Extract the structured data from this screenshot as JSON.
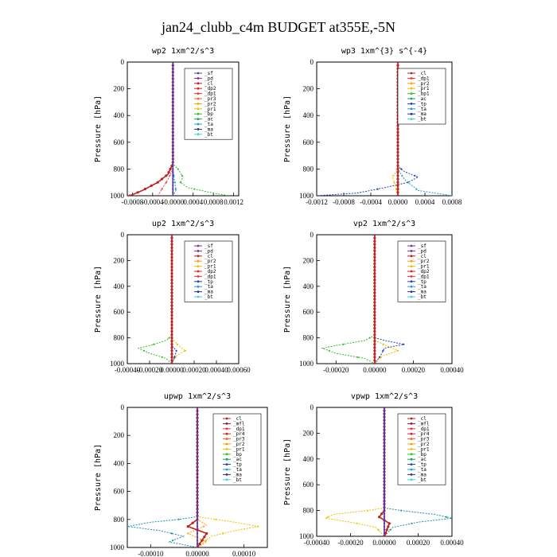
{
  "figure_title": "jan24_clubb_c4m  BUDGET at355E,-5N",
  "chart_data": [
    {
      "type": "line",
      "title": "wp2  1xm^2/s^3",
      "ylabel": "Pressure [hPa]",
      "ylim": [
        1000,
        0
      ],
      "yticks": [
        0,
        200,
        400,
        600,
        800,
        1000
      ],
      "xlim": [
        -0.0009,
        0.0013
      ],
      "xticks": [
        -0.0008,
        -0.0004,
        0.0,
        0.0004,
        0.0008,
        0.0012
      ],
      "xticklabels": [
        "-0.0008",
        "-0.0004",
        "-0.0000",
        "0.0004",
        "0.0008",
        "0.0012"
      ],
      "legend": [
        "_sf",
        "_pd",
        "_cl",
        "_dp2",
        "_dp1",
        "_pr3",
        "_pr2",
        "_pr1",
        "_bp",
        "_ac",
        "_ta",
        "_ma",
        "_bt"
      ],
      "series": [
        {
          "name": "_cl",
          "color": "#c02020",
          "points": [
            [
              0,
              0
            ],
            [
              0,
              760
            ],
            [
              -5e-05,
              800
            ],
            [
              -0.0001,
              840
            ],
            [
              -0.0003,
              900
            ],
            [
              -0.0006,
              960
            ],
            [
              -0.00085,
              1000
            ]
          ]
        },
        {
          "name": "_bp",
          "color": "#30c030",
          "points": [
            [
              0,
              0
            ],
            [
              0,
              760
            ],
            [
              0.0001,
              800
            ],
            [
              0.0002,
              860
            ],
            [
              0.00015,
              900
            ],
            [
              0.0003,
              940
            ],
            [
              0.0008,
              980
            ],
            [
              0.0011,
              1000
            ]
          ]
        },
        {
          "name": "_ac",
          "color": "#20a0a0",
          "points": [
            [
              0,
              0
            ],
            [
              0,
              800
            ],
            [
              3e-05,
              880
            ],
            [
              6e-05,
              960
            ],
            [
              0,
              1000
            ]
          ]
        },
        {
          "name": "_dp1",
          "color": "#ff4040",
          "points": [
            [
              0,
              0
            ],
            [
              0,
              800
            ],
            [
              -5e-05,
              840
            ],
            [
              -0.0001,
              880
            ],
            [
              -0.0002,
              940
            ],
            [
              -0.0003,
              1000
            ]
          ]
        },
        {
          "name": "_bt",
          "color": "#6030a0",
          "points": [
            [
              0,
              0
            ],
            [
              0,
              1000
            ]
          ]
        }
      ]
    },
    {
      "type": "line",
      "title": "wp3  1xm^{3} s^{-4}",
      "ylabel": "Pressure [hPa]",
      "ylim": [
        1000,
        0
      ],
      "yticks": [
        0,
        200,
        400,
        600,
        800,
        1000
      ],
      "xlim": [
        -0.0012,
        0.0008
      ],
      "xticks": [
        -0.0012,
        -0.0008,
        -0.0004,
        0.0,
        0.0004,
        0.0008
      ],
      "xticklabels": [
        "-0.0012",
        "-0.0008",
        "-0.0004",
        "0.0000",
        "0.0004",
        "0.0008"
      ],
      "legend": [
        "_cl",
        "_dp1",
        "_pr2",
        "_pr1",
        "_bp1",
        "_ac",
        "_tp",
        "_ta",
        "_ma",
        "_bt"
      ],
      "series": [
        {
          "name": "_tp",
          "color": "#2040c0",
          "points": [
            [
              0,
              0
            ],
            [
              0,
              780
            ],
            [
              0.0001,
              820
            ],
            [
              0.0003,
              860
            ],
            [
              0.00015,
              900
            ],
            [
              -0.0002,
              940
            ],
            [
              -0.0006,
              980
            ],
            [
              -0.0012,
              1000
            ]
          ]
        },
        {
          "name": "_ta",
          "color": "#20a0d0",
          "points": [
            [
              0,
              0
            ],
            [
              0,
              800
            ],
            [
              0.0001,
              880
            ],
            [
              0.0003,
              960
            ],
            [
              0.0008,
              1000
            ]
          ]
        },
        {
          "name": "_pr2",
          "color": "#f0c000",
          "points": [
            [
              0,
              0
            ],
            [
              0,
              800
            ],
            [
              -8e-05,
              860
            ],
            [
              -4e-05,
              920
            ],
            [
              0,
              1000
            ]
          ]
        },
        {
          "name": "_cl",
          "color": "#c02020",
          "points": [
            [
              0,
              0
            ],
            [
              0,
              1000
            ]
          ]
        }
      ]
    },
    {
      "type": "line",
      "title": "up2  1xm^2/s^3",
      "ylabel": "Pressure [hPa]",
      "ylim": [
        1000,
        0
      ],
      "yticks": [
        0,
        200,
        400,
        600,
        800,
        1000
      ],
      "xlim": [
        -0.0004,
        0.0006
      ],
      "xticks": [
        -0.0004,
        -0.0002,
        0.0,
        0.0002,
        0.0004,
        0.0006
      ],
      "xticklabels": [
        "-0.00040",
        "-0.00020",
        "0.00000",
        "0.00020",
        "0.00040",
        "0.00060"
      ],
      "legend": [
        "_sf",
        "_pd",
        "_cl",
        "_pr2",
        "_pr1",
        "_dp2",
        "_dp1",
        "_tp",
        "_ta",
        "_ma",
        "_bt"
      ],
      "series": [
        {
          "name": "_dp2",
          "color": "#30c030",
          "points": [
            [
              0,
              0
            ],
            [
              0,
              780
            ],
            [
              -5e-05,
              820
            ],
            [
              -0.0002,
              860
            ],
            [
              -0.0003,
              880
            ],
            [
              -0.0002,
              920
            ],
            [
              -5e-05,
              960
            ],
            [
              0,
              1000
            ]
          ]
        },
        {
          "name": "_pr1",
          "color": "#f0c000",
          "points": [
            [
              0,
              0
            ],
            [
              0,
              800
            ],
            [
              6e-05,
              860
            ],
            [
              0.00012,
              900
            ],
            [
              4e-05,
              940
            ],
            [
              0,
              1000
            ]
          ]
        },
        {
          "name": "_tp",
          "color": "#2040c0",
          "points": [
            [
              0,
              0
            ],
            [
              0,
              860
            ],
            [
              4e-05,
              900
            ],
            [
              2e-05,
              960
            ],
            [
              0,
              1000
            ]
          ]
        },
        {
          "name": "_cl",
          "color": "#c02020",
          "points": [
            [
              0,
              0
            ],
            [
              0,
              1000
            ]
          ]
        }
      ]
    },
    {
      "type": "line",
      "title": "vp2  1xm^2/s^3",
      "ylabel": "Pressure [hPa]",
      "ylim": [
        1000,
        0
      ],
      "yticks": [
        0,
        200,
        400,
        600,
        800,
        1000
      ],
      "xlim": [
        -0.0003,
        0.0004
      ],
      "xticks": [
        -0.0002,
        0.0,
        0.0002,
        0.0004
      ],
      "xticklabels": [
        "-0.00020",
        "0.00000",
        "0.00020",
        "0.00040"
      ],
      "legend": [
        "_sf",
        "_pd",
        "_cl",
        "_pr2",
        "_pr1",
        "_dp2",
        "_dp1",
        "_tp",
        "_ta",
        "_ma",
        "_bt"
      ],
      "series": [
        {
          "name": "_dp2",
          "color": "#30c030",
          "points": [
            [
              0,
              0
            ],
            [
              0,
              780
            ],
            [
              -5e-05,
              820
            ],
            [
              -0.0002,
              860
            ],
            [
              -0.00027,
              880
            ],
            [
              -0.0002,
              920
            ],
            [
              -5e-05,
              960
            ],
            [
              0,
              1000
            ]
          ]
        },
        {
          "name": "_tp",
          "color": "#2040c0",
          "points": [
            [
              0,
              0
            ],
            [
              0,
              800
            ],
            [
              5e-05,
              820
            ],
            [
              0.00015,
              850
            ],
            [
              5e-05,
              880
            ],
            [
              3e-05,
              940
            ],
            [
              0,
              1000
            ]
          ]
        },
        {
          "name": "_pr1",
          "color": "#f0c000",
          "points": [
            [
              0,
              0
            ],
            [
              0,
              820
            ],
            [
              6e-05,
              860
            ],
            [
              0.00012,
              900
            ],
            [
              4e-05,
              940
            ],
            [
              0,
              1000
            ]
          ]
        },
        {
          "name": "_cl",
          "color": "#c02020",
          "points": [
            [
              0,
              0
            ],
            [
              0,
              1000
            ]
          ]
        }
      ]
    },
    {
      "type": "line",
      "title": "upwp  1xm^2/s^3",
      "ylabel": "Pressure [hPa]",
      "ylim": [
        1000,
        0
      ],
      "yticks": [
        0,
        200,
        400,
        600,
        800,
        1000
      ],
      "xlim": [
        -0.00015,
        0.00015
      ],
      "xticks": [
        -0.0001,
        0.0,
        0.0001
      ],
      "xticklabels": [
        "-0.00010",
        "0.00000",
        "0.00010"
      ],
      "legend": [
        "_cl",
        "_mfl",
        "_dp1",
        "_pr4",
        "_pr3",
        "_pr2",
        "_pr1",
        "_bp",
        "_ac",
        "_tp",
        "_ta",
        "_ma",
        "_bt"
      ],
      "series": [
        {
          "name": "_tp",
          "color": "#2090b0",
          "points": [
            [
              0,
              0
            ],
            [
              0,
              780
            ],
            [
              -4e-05,
              800
            ],
            [
              -0.0001,
              820
            ],
            [
              -0.00015,
              850
            ],
            [
              -8e-05,
              880
            ],
            [
              -3e-05,
              920
            ],
            [
              -6e-05,
              960
            ],
            [
              0,
              1000
            ]
          ]
        },
        {
          "name": "_pr1",
          "color": "#f0c000",
          "points": [
            [
              0,
              0
            ],
            [
              0,
              780
            ],
            [
              4e-05,
              800
            ],
            [
              8e-05,
              820
            ],
            [
              0.00013,
              850
            ],
            [
              8e-05,
              880
            ],
            [
              3e-05,
              920
            ],
            [
              0,
              1000
            ]
          ]
        },
        {
          "name": "_pr2",
          "color": "#ffa000",
          "points": [
            [
              0,
              0
            ],
            [
              0,
              800
            ],
            [
              2e-05,
              840
            ],
            [
              -2e-05,
              900
            ],
            [
              2e-05,
              960
            ],
            [
              0,
              1000
            ]
          ]
        },
        {
          "name": "_cl",
          "color": "#c02020",
          "points": [
            [
              0,
              0
            ],
            [
              0,
              800
            ],
            [
              -2e-05,
              850
            ],
            [
              2e-05,
              900
            ],
            [
              0,
              1000
            ]
          ]
        },
        {
          "name": "_bt",
          "color": "#6030a0",
          "points": [
            [
              0,
              0
            ],
            [
              0,
              1000
            ]
          ]
        }
      ]
    },
    {
      "type": "line",
      "title": "vpwp  1xm^2/s^3",
      "ylabel": "Pressure [hPa]",
      "ylim": [
        1000,
        0
      ],
      "yticks": [
        0,
        200,
        400,
        600,
        800,
        1000
      ],
      "xlim": [
        -0.0004,
        0.0004
      ],
      "xticks": [
        -0.0004,
        -0.0002,
        0.0,
        0.0002,
        0.0004
      ],
      "xticklabels": [
        "-0.00040",
        "-0.00020",
        "0.00000",
        "0.00020",
        "0.00040"
      ],
      "legend": [
        "_cl",
        "_mfl",
        "_dp1",
        "_pr4",
        "_pr3",
        "_pr2",
        "_pr1",
        "_bp",
        "_ac",
        "_tp",
        "_ta",
        "_ma",
        "_bt"
      ],
      "series": [
        {
          "name": "_tp",
          "color": "#2090b0",
          "points": [
            [
              0,
              0
            ],
            [
              0,
              780
            ],
            [
              0.0001,
              800
            ],
            [
              0.0003,
              830
            ],
            [
              0.0004,
              860
            ],
            [
              0.0002,
              890
            ],
            [
              5e-05,
              930
            ],
            [
              0,
              1000
            ]
          ]
        },
        {
          "name": "_pr1",
          "color": "#f0c000",
          "points": [
            [
              0,
              0
            ],
            [
              0,
              780
            ],
            [
              -0.0001,
              800
            ],
            [
              -0.0003,
              830
            ],
            [
              -0.00035,
              860
            ],
            [
              -0.0002,
              890
            ],
            [
              -5e-05,
              930
            ],
            [
              0,
              1000
            ]
          ]
        },
        {
          "name": "_cl",
          "color": "#c02020",
          "points": [
            [
              0,
              0
            ],
            [
              0,
              800
            ],
            [
              -3e-05,
              850
            ],
            [
              3e-05,
              900
            ],
            [
              0,
              1000
            ]
          ]
        },
        {
          "name": "_bt",
          "color": "#6030a0",
          "points": [
            [
              0,
              0
            ],
            [
              0,
              1000
            ]
          ]
        }
      ]
    }
  ],
  "legend_colors": {
    "_sf": "#6a3aa8",
    "_pd": "#8a2a8a",
    "_cl": "#c02020",
    "_mfl": "#8a1a3a",
    "_dp2": "#e02020",
    "_dp1": "#ff3030",
    "_pr4": "#d02040",
    "_pr3": "#ff6020",
    "_pr2": "#ffa000",
    "_pr1": "#f0c000",
    "_bp": "#30c030",
    "_bp1": "#30c030",
    "_ac": "#20a060",
    "_tp": "#2040c0",
    "_ta": "#20a0d0",
    "_ma": "#303080",
    "_bt": "#40d0e0"
  }
}
